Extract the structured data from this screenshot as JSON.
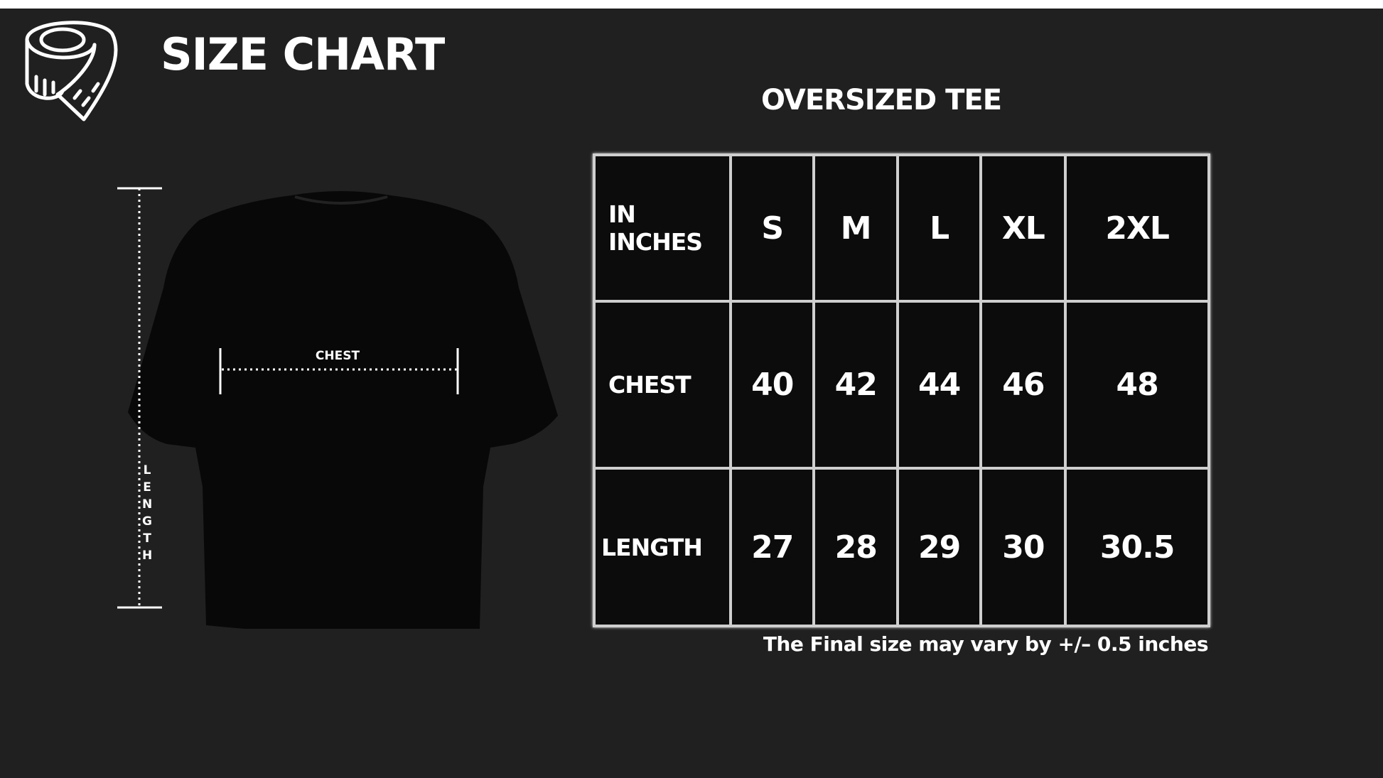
{
  "header": {
    "title": "SIZE CHART",
    "icon": "measuring-tape-icon"
  },
  "product": {
    "title": "OVERSIZED TEE"
  },
  "diagram": {
    "chest_label": "CHEST",
    "length_label": "LENGTH"
  },
  "table": {
    "corner_line1": "IN",
    "corner_line2": "INCHES",
    "sizes": [
      "S",
      "M",
      "L",
      "XL",
      "2XL"
    ],
    "rows": [
      {
        "label": "CHEST",
        "values": [
          "40",
          "42",
          "44",
          "46",
          "48"
        ]
      },
      {
        "label": "LENGTH",
        "values": [
          "27",
          "28",
          "29",
          "30",
          "30.5"
        ]
      }
    ]
  },
  "note": "The Final size may vary by +/– 0.5 inches",
  "colors": {
    "background": "#202020",
    "text": "#ffffff",
    "grid": "#cfcfcf"
  }
}
